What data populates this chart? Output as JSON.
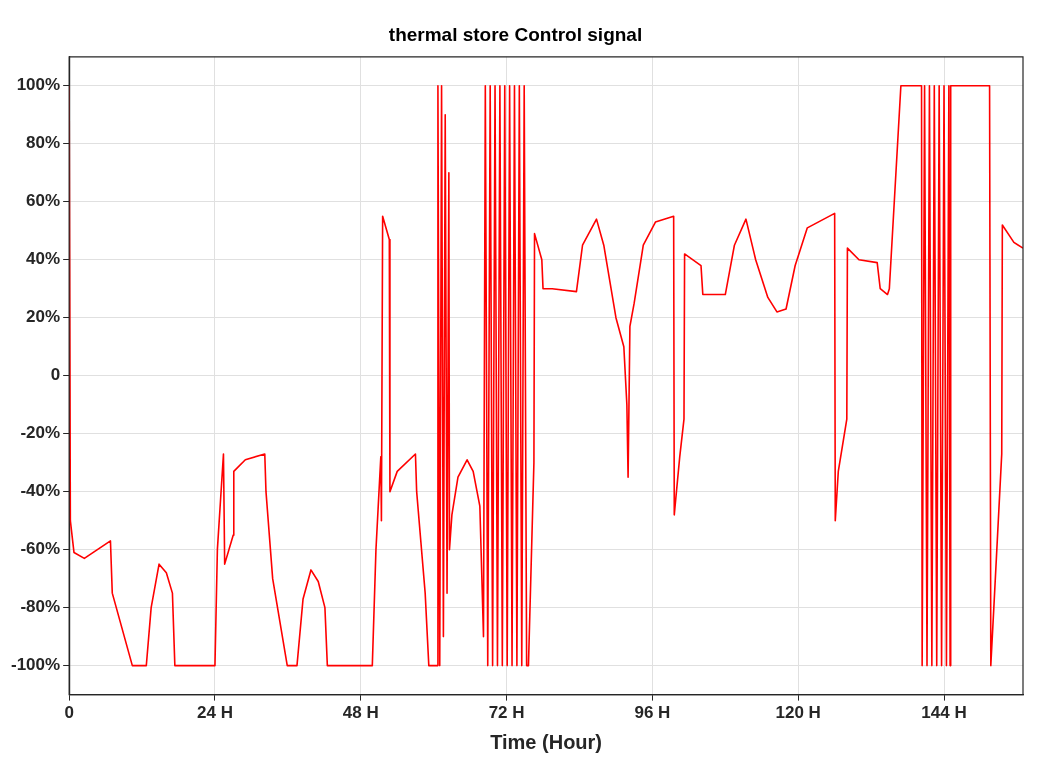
{
  "chart_data": {
    "type": "line",
    "title": "thermal store Control signal",
    "xlabel": "Time (Hour)",
    "xlim": [
      0,
      157
    ],
    "ylim": [
      -110,
      110
    ],
    "xticks": [
      0,
      {
        "value": 24,
        "label": "24 H"
      },
      {
        "value": 48,
        "label": "48 H"
      },
      {
        "value": 72,
        "label": "72 H"
      },
      {
        "value": 96,
        "label": "96 H"
      },
      {
        "value": 120,
        "label": "120 H"
      },
      {
        "value": 144,
        "label": "144 H"
      }
    ],
    "yticks": [
      {
        "value": -100,
        "label": "-100%"
      },
      {
        "value": -80,
        "label": "-80%"
      },
      {
        "value": -60,
        "label": "-60%"
      },
      {
        "value": -40,
        "label": "-40%"
      },
      {
        "value": -20,
        "label": "-20%"
      },
      0,
      {
        "value": 20,
        "label": "20%"
      },
      {
        "value": 40,
        "label": "40%"
      },
      {
        "value": 60,
        "label": "60%"
      },
      {
        "value": 80,
        "label": "80%"
      },
      {
        "value": 100,
        "label": "100%"
      }
    ],
    "grid": true,
    "legend": false,
    "marker": "none",
    "line_style": "solid",
    "series": [
      {
        "color": "#ff0000",
        "x": [
          0,
          0.2,
          0.8,
          2.5,
          6.8,
          7.1,
          10.4,
          12.7,
          13.5,
          14.8,
          16,
          17,
          17.4,
          24,
          24.4,
          25.4,
          25.6,
          27,
          27.1,
          29,
          32.2,
          32.4,
          33.5,
          35.9,
          37.5,
          38.5,
          39.8,
          41,
          42.1,
          42.5,
          49.9,
          50.5,
          51.3,
          51.4,
          51.6,
          52.7,
          52.8,
          54,
          57,
          57.2,
          58.6,
          59.2,
          60.6,
          60.7,
          61,
          61.3,
          61.6,
          61.9,
          62.2,
          62.5,
          62.6,
          63,
          64,
          65.5,
          66.5,
          67.6,
          68.2,
          68.5,
          68.9,
          69.3,
          69.7,
          70.1,
          70.5,
          70.9,
          71.3,
          71.7,
          72.1,
          72.5,
          72.9,
          73.3,
          73.7,
          74.1,
          74.5,
          74.9,
          75.3,
          75.6,
          76.5,
          76.6,
          77.8,
          78,
          79.5,
          83.5,
          84.5,
          86.8,
          88,
          90,
          91.3,
          91.8,
          92,
          92.3,
          93,
          94.5,
          96.5,
          99.5,
          99.6,
          100.5,
          101.2,
          101.3,
          104,
          104.3,
          108,
          109.5,
          111.4,
          113,
          115,
          116.5,
          118,
          119.5,
          121.5,
          126,
          126.1,
          126.6,
          128,
          128.1,
          130,
          133,
          133.5,
          134.7,
          135,
          136.9,
          140.3,
          140.4,
          140.8,
          141.2,
          141.6,
          142,
          142.4,
          142.8,
          143.2,
          143.6,
          144,
          144.4,
          144.8,
          145,
          145.1,
          151.5,
          151.7,
          152.2,
          153.5,
          153.6,
          155.5,
          157
        ],
        "values": [
          100,
          -50,
          -61,
          -63,
          -57,
          -75,
          -100,
          -100,
          -80,
          -65,
          -68,
          -75,
          -100,
          -100,
          -60,
          -27,
          -65,
          -55,
          -33,
          -29,
          -27,
          -40,
          -70,
          -100,
          -100,
          -77,
          -67,
          -71,
          -80,
          -100,
          -100,
          -60,
          -28,
          -50,
          55,
          47,
          -40,
          -33,
          -27,
          -40,
          -75,
          -100,
          -100,
          100,
          -100,
          100,
          -90,
          90,
          -75,
          70,
          -60,
          -48,
          -35,
          -29,
          -33,
          -45,
          -90,
          100,
          -100,
          100,
          -100,
          100,
          -100,
          100,
          -100,
          100,
          -100,
          100,
          -100,
          100,
          -100,
          100,
          -100,
          100,
          -100,
          -100,
          -30,
          49,
          40,
          30,
          30,
          29,
          45,
          54,
          45,
          20,
          10,
          -10,
          -35,
          17,
          25,
          45,
          53,
          55,
          -48,
          -28,
          -15,
          42,
          38,
          28,
          28,
          45,
          54,
          40,
          27,
          22,
          23,
          38,
          51,
          56,
          -50,
          -33,
          -15,
          44,
          40,
          39,
          30,
          28,
          30,
          100,
          100,
          -100,
          100,
          -100,
          100,
          -100,
          100,
          -100,
          100,
          -100,
          100,
          -100,
          100,
          -100,
          100,
          100,
          -100,
          -80,
          -27,
          52,
          46,
          44
        ]
      }
    ]
  }
}
